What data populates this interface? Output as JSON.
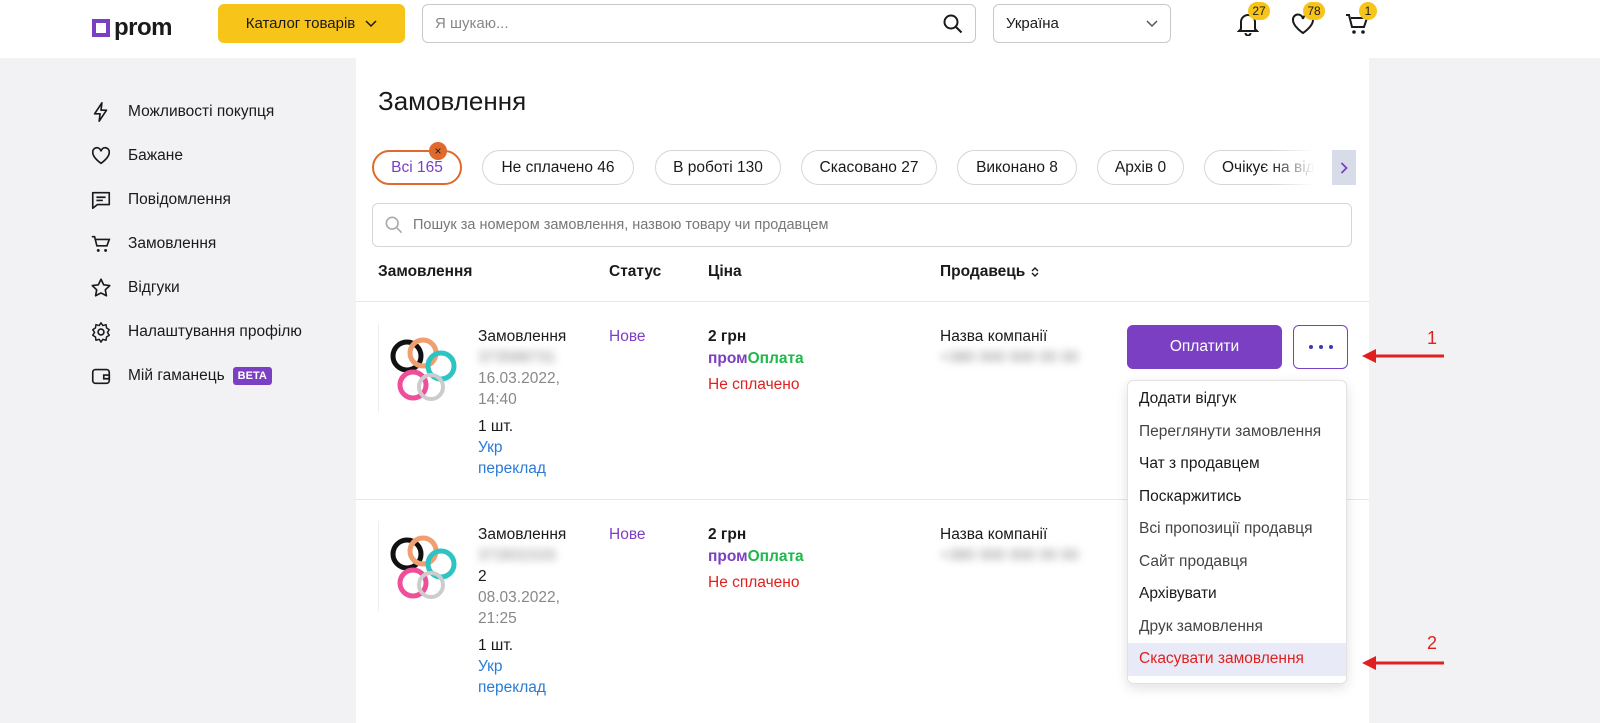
{
  "header": {
    "logo_text": "prom",
    "catalog_label": "Каталог товарів",
    "search_placeholder": "Я шукаю...",
    "country": "Україна",
    "notifications_count": "27",
    "favorites_count": "78",
    "cart_count": "1"
  },
  "sidebar": {
    "items": [
      {
        "label": "Можливості покупця",
        "icon": "lightning-icon"
      },
      {
        "label": "Бажане",
        "icon": "heart-icon"
      },
      {
        "label": "Повідомлення",
        "icon": "message-icon"
      },
      {
        "label": "Замовлення",
        "icon": "cart-icon"
      },
      {
        "label": "Відгуки",
        "icon": "star-icon"
      },
      {
        "label": "Налаштування профілю",
        "icon": "gear-icon"
      },
      {
        "label": "Мій гаманець",
        "icon": "wallet-icon",
        "badge": "BETA"
      }
    ]
  },
  "main": {
    "title": "Замовлення",
    "filters": [
      "Всі 165",
      "Не сплачено 46",
      "В роботі 130",
      "Скасовано 27",
      "Виконано 8",
      "Архів 0",
      "Очікує на відгук"
    ],
    "filter_close": "×",
    "search_placeholder": "Пошук за номером замовлення, назвою товару чи продавцем",
    "columns": {
      "order": "Замовлення",
      "status": "Статус",
      "price": "Ціна",
      "seller": "Продавець"
    },
    "orders": [
      {
        "label": "Замовлення",
        "number": "373588731",
        "date": "16.03.2022,",
        "time": "14:40",
        "qty": "1 шт.",
        "link1": "Укр",
        "link2": "переклад",
        "status": "Нове",
        "price": "2 грн",
        "pay_brand_1": "пром",
        "pay_brand_2": "Оплата",
        "pay_status": "Не сплачено",
        "seller": "Назва компанії",
        "phone": "+380 000 000 00 00"
      },
      {
        "label": "Замовлення",
        "number": "372831533",
        "number_tail": "2",
        "date": "08.03.2022,",
        "time": "21:25",
        "qty": "1 шт.",
        "link1": "Укр",
        "link2": "переклад",
        "status": "Нове",
        "price": "2 грн",
        "pay_brand_1": "пром",
        "pay_brand_2": "Оплата",
        "pay_status": "Не сплачено",
        "seller": "Назва компанії",
        "phone": "+380 000 000 00 00"
      }
    ],
    "pay_button": "Оплатити"
  },
  "menu": {
    "items": [
      "Додати відгук",
      "Переглянути замовлення",
      "Чат з продавцем",
      "Поскаржитись",
      "Всі пропозиції продавця",
      "Сайт продавця",
      "Архівувати",
      "Друк замовлення",
      "Скасувати замовлення"
    ]
  },
  "annotations": {
    "one": "1",
    "two": "2"
  }
}
